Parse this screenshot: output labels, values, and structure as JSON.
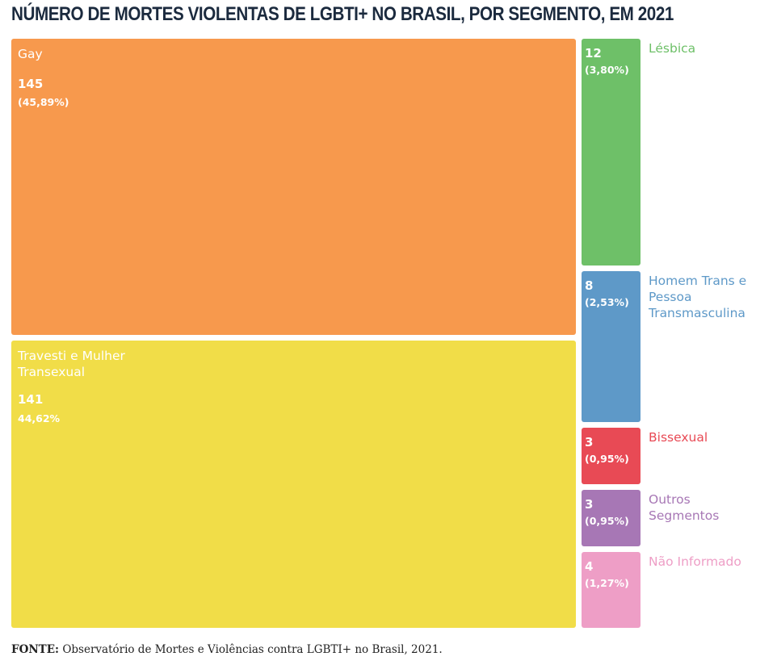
{
  "chart_data": {
    "type": "treemap",
    "title": "NÚMERO DE MORTES VIOLENTAS DE LGBTI+ NO BRASIL, POR SEGMENTO, EM 2021",
    "segments": [
      {
        "key": "gay",
        "name": "Gay",
        "label": "Gay",
        "value": 145,
        "value_text": "145",
        "percent_text": "(45,89%)",
        "color": "#f7994d"
      },
      {
        "key": "travesti",
        "name": "Travesti e Mulher Transexual",
        "label": "Travesti e Mulher\nTransexual",
        "value": 141,
        "value_text": "141",
        "percent_text": "44,62%",
        "color": "#f1dd48"
      },
      {
        "key": "lesbica",
        "name": "Lésbica",
        "label": "Lésbica",
        "value": 12,
        "value_text": "12",
        "percent_text": "(3,80%)",
        "color": "#6ec068",
        "label_color": "#6ec068"
      },
      {
        "key": "homemtrans",
        "name": "Homem Trans e Pessoa Transmasculina",
        "label": "Homem Trans e\nPessoa\nTransmasculina",
        "value": 8,
        "value_text": "8",
        "percent_text": "(2,53%)",
        "color": "#5e99c8",
        "label_color": "#5e99c8"
      },
      {
        "key": "bissexual",
        "name": "Bissexual",
        "label": "Bissexual",
        "value": 3,
        "value_text": "3",
        "percent_text": "(0,95%)",
        "color": "#e84a55",
        "label_color": "#e84a55"
      },
      {
        "key": "outros",
        "name": "Outros Segmentos",
        "label": "Outros\nSegmentos",
        "value": 3,
        "value_text": "3",
        "percent_text": "(0,95%)",
        "color": "#a777b5",
        "label_color": "#a777b5"
      },
      {
        "key": "naoinformado",
        "name": "Não Informado",
        "label": "Não Informado",
        "value": 4,
        "value_text": "4",
        "percent_text": "(1,27%)",
        "color": "#ee9ec6",
        "label_color": "#ee9ec6"
      }
    ]
  },
  "source": {
    "prefix": "FONTE:",
    "text": "Observatório de Mortes e Violências contra LGBTI+ no Brasil, 2021."
  }
}
